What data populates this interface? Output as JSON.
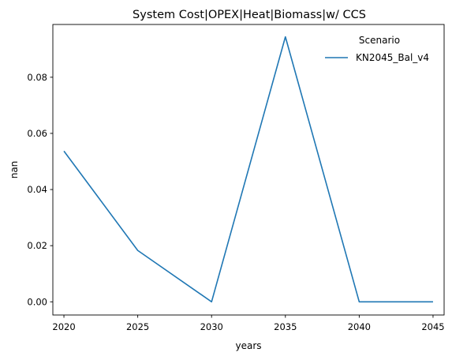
{
  "chart_data": {
    "type": "line",
    "title": "System Cost|OPEX|Heat|Biomass|w/ CCS",
    "xlabel": "years",
    "ylabel": "nan",
    "x": [
      2020,
      2025,
      2030,
      2035,
      2040,
      2045
    ],
    "xticks": [
      2020,
      2025,
      2030,
      2035,
      2040,
      2045
    ],
    "yticks": [
      0.0,
      0.02,
      0.04,
      0.06,
      0.08
    ],
    "ytick_labels": [
      "0.00",
      "0.02",
      "0.04",
      "0.06",
      "0.08"
    ],
    "xlim": [
      2019.25,
      2045.75
    ],
    "ylim": [
      -0.0047,
      0.0988
    ],
    "legend": {
      "title": "Scenario",
      "placement": "top-right"
    },
    "series": [
      {
        "name": "KN2045_Bal_v4",
        "color": "#1f77b4",
        "values": [
          0.0537,
          0.0183,
          0.0,
          0.0944,
          0.0,
          0.0
        ]
      }
    ],
    "grid": false
  }
}
